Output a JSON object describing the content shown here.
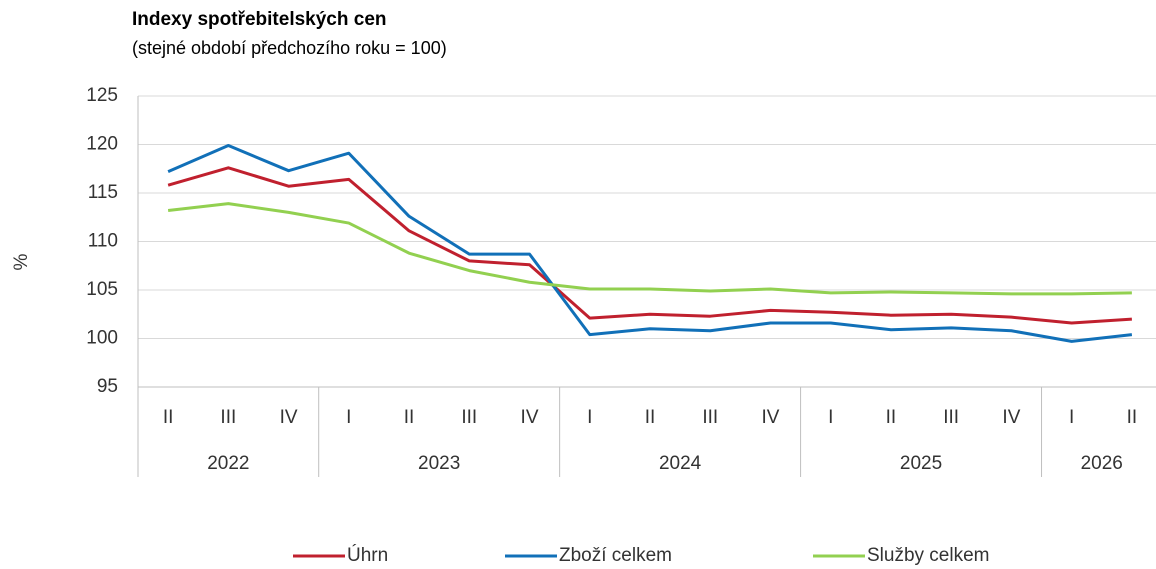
{
  "chart_data": {
    "type": "line",
    "title": "Indexy spotřebitelských cen",
    "subtitle": "(stejné období předchozího roku = 100)",
    "y_label": "%",
    "groups": [
      {
        "name": "2022",
        "categories": [
          "II",
          "III",
          "IV"
        ]
      },
      {
        "name": "2023",
        "categories": [
          "I",
          "II",
          "III",
          "IV"
        ]
      },
      {
        "name": "2024",
        "categories": [
          "I",
          "II",
          "III",
          "IV"
        ]
      },
      {
        "name": "2025",
        "categories": [
          "I",
          "II",
          "III",
          "IV"
        ]
      },
      {
        "name": "2026",
        "categories": [
          "I",
          "II"
        ]
      }
    ],
    "series": [
      {
        "name": "Úhrn",
        "color": "#c0202e",
        "values": [
          115.8,
          117.6,
          115.7,
          116.4,
          111.1,
          108.0,
          107.6,
          102.1,
          102.5,
          102.3,
          102.9,
          102.7,
          102.4,
          102.5,
          102.2,
          101.6,
          102.0
        ]
      },
      {
        "name": "Zboží celkem",
        "color": "#1170b8",
        "values": [
          117.2,
          119.9,
          117.3,
          119.1,
          112.6,
          108.7,
          108.7,
          100.4,
          101.0,
          100.8,
          101.6,
          101.6,
          100.9,
          101.1,
          100.8,
          99.7,
          100.4
        ]
      },
      {
        "name": "Služby celkem",
        "color": "#92d050",
        "values": [
          113.2,
          113.9,
          113.0,
          111.9,
          108.8,
          107.0,
          105.8,
          105.1,
          105.1,
          104.9,
          105.1,
          104.7,
          104.8,
          104.7,
          104.6,
          104.6,
          104.7
        ]
      }
    ],
    "ylim": [
      95,
      125
    ],
    "yticks": [
      95,
      100,
      105,
      110,
      115,
      120,
      125
    ],
    "grid": true,
    "legend": "bottom"
  }
}
